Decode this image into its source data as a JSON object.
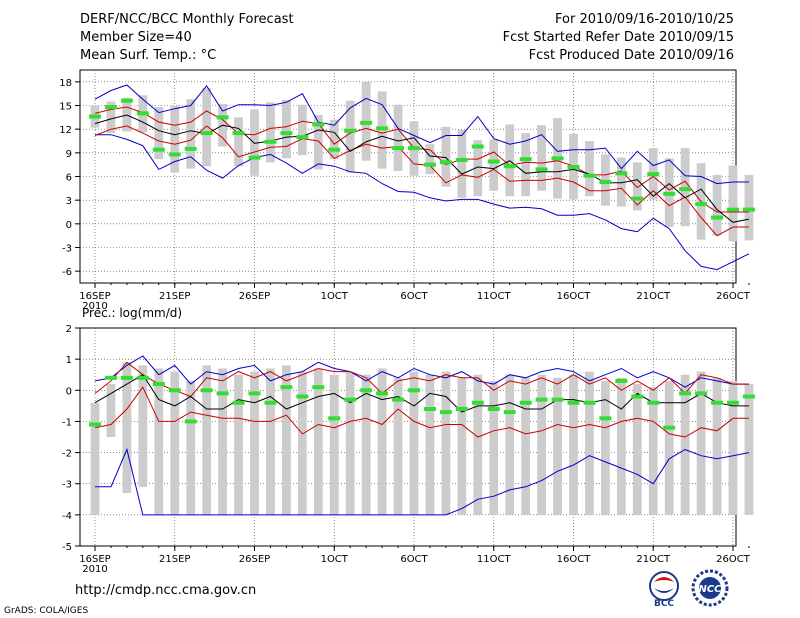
{
  "header": {
    "title": "DERF/NCC/BCC Monthly Forecast",
    "member_size": "Member Size=40",
    "variable": "Mean Surf. Temp.: °C",
    "period": "For 2010/09/16-2010/10/25",
    "started": "Fcst Started Refer Date 2010/09/15",
    "produced": "Fcst Produced Date 2010/09/16"
  },
  "footer": {
    "url": "http://cmdp.ncc.cma.gov.cn",
    "grads": "GrADS: COLA/IGES",
    "logo1": "BCC",
    "logo2": "NCC"
  },
  "colors": {
    "box": "#cccccc",
    "mean": "#000000",
    "spread": "#cc0000",
    "range": "#0000cc",
    "marker": "#33dd33"
  },
  "chart_data": [
    {
      "type": "box-whisker",
      "title": "Mean Surf. Temp.: °C",
      "x_tick_labels": [
        "16SEP",
        "21SEP",
        "26SEP",
        "1OCT",
        "6OCT",
        "11OCT",
        "16OCT",
        "21OCT",
        "26OCT"
      ],
      "x_sublabel": "2010",
      "ylim": [
        -7.5,
        19.5
      ],
      "y_ticks": [
        -6,
        -3,
        0,
        3,
        6,
        9,
        12,
        15,
        18
      ],
      "mean": [
        12.7,
        13.3,
        13.8,
        12.9,
        11.8,
        11.3,
        11.8,
        11.4,
        12.5,
        12.1,
        10.2,
        10.5,
        11.0,
        11.1,
        11.9,
        11.6,
        9.2,
        10.4,
        11.1,
        10.5,
        10.9,
        8.6,
        8.4,
        6.3,
        7.2,
        7.0,
        8.0,
        6.4,
        6.6,
        6.6,
        6.9,
        6.3,
        5.2,
        5.2,
        5.6,
        3.5,
        5.1,
        3.3,
        4.4,
        1.8,
        0.2,
        0.6
      ],
      "upper_sd": [
        14.0,
        14.5,
        14.8,
        14.1,
        12.9,
        12.5,
        12.9,
        14.3,
        13.2,
        11.4,
        11.3,
        12.1,
        12.3,
        13.0,
        12.7,
        10.1,
        11.5,
        12.1,
        11.5,
        12.0,
        9.6,
        9.4,
        7.5,
        8.2,
        8.2,
        9.1,
        7.4,
        7.8,
        7.7,
        8.0,
        7.3,
        6.2,
        6.2,
        6.7,
        4.6,
        6.0,
        4.3,
        5.4,
        2.8,
        1.5,
        1.5,
        1.5
      ],
      "lower_sd": [
        11.2,
        12.0,
        12.4,
        11.5,
        10.5,
        10.1,
        10.6,
        12.4,
        10.9,
        8.5,
        9.1,
        9.7,
        9.8,
        10.8,
        10.5,
        8.3,
        9.3,
        10.1,
        9.6,
        9.8,
        7.6,
        7.4,
        5.2,
        6.2,
        5.9,
        6.9,
        5.4,
        5.5,
        5.5,
        5.8,
        5.3,
        4.2,
        4.2,
        4.5,
        2.4,
        4.2,
        2.3,
        3.4,
        0.8,
        -1.5,
        -0.4,
        -0.4
      ],
      "max": [
        15.8,
        16.9,
        17.6,
        15.8,
        14.1,
        14.6,
        15.0,
        17.5,
        14.3,
        15.1,
        15.1,
        15.0,
        15.4,
        16.5,
        12.9,
        12.5,
        14.7,
        15.9,
        15.1,
        12.1,
        11.2,
        10.3,
        11.2,
        11.2,
        13.6,
        10.8,
        10.1,
        10.5,
        11.3,
        9.2,
        9.4,
        9.4,
        9.6,
        7.0,
        9.2,
        7.4,
        8.1,
        6.1,
        6.0,
        5.1,
        5.3,
        5.3
      ],
      "min": [
        11.3,
        11.3,
        10.7,
        9.9,
        6.9,
        7.9,
        8.5,
        6.8,
        5.8,
        7.4,
        8.4,
        8.8,
        7.7,
        6.4,
        7.6,
        7.3,
        6.6,
        6.4,
        5.1,
        4.1,
        4.0,
        3.3,
        2.9,
        3.1,
        3.1,
        2.5,
        2.0,
        2.1,
        1.9,
        1.1,
        1.1,
        1.3,
        0.5,
        -0.6,
        -1.0,
        0.7,
        -0.6,
        -3.4,
        -5.4,
        -5.8,
        -4.8,
        -3.8
      ],
      "box_top": [
        15,
        15.5,
        16,
        16.3,
        14.8,
        15,
        15.8,
        17.2,
        15.2,
        13.5,
        14.5,
        15.4,
        15.7,
        15.1,
        13.8,
        13.2,
        15.6,
        18,
        16.8,
        15.1,
        13,
        10.1,
        12.3,
        11.9,
        10.6,
        10.7,
        12.6,
        11.5,
        12.5,
        13.4,
        11.4,
        10.5,
        8.8,
        8.4,
        7.8,
        9.6,
        8.3,
        9.6,
        7.7,
        6.2,
        7.4,
        6.2
      ],
      "box_bottom": [
        12.2,
        11.5,
        11.7,
        11.6,
        8.2,
        6.5,
        7,
        7.3,
        9.8,
        7.3,
        6.1,
        7.8,
        8.3,
        8.7,
        6.9,
        8.2,
        6.5,
        8,
        7,
        6.7,
        6.1,
        6.3,
        4.7,
        3.3,
        3.5,
        4.2,
        3.5,
        3.5,
        4.2,
        3.2,
        3.1,
        3.5,
        2.3,
        2.2,
        1.7,
        3.1,
        -0.4,
        -0.3,
        -2,
        -1.5,
        -2.2,
        -2.1
      ],
      "markers": [
        13.6,
        14.8,
        15.6,
        14.0,
        9.4,
        8.8,
        9.5,
        11.5,
        13.5,
        11.5,
        8.4,
        10.4,
        11.5,
        11.0,
        12.6,
        9.4,
        11.8,
        12.8,
        12.1,
        9.6,
        9.6,
        7.5,
        7.8,
        8.1,
        9.8,
        7.9,
        7.3,
        8.2,
        6.9,
        8.3,
        7.2,
        6.1,
        5.3,
        6.4,
        3.2,
        6.3,
        3.8,
        4.4,
        2.5,
        0.8,
        1.8,
        1.8
      ]
    },
    {
      "type": "box-whisker",
      "title": "Prec.: log(mm/d)",
      "x_tick_labels": [
        "16SEP",
        "21SEP",
        "26SEP",
        "1OCT",
        "6OCT",
        "11OCT",
        "16OCT",
        "21OCT",
        "26OCT"
      ],
      "x_sublabel": "2010",
      "ylim": [
        -5,
        2
      ],
      "y_ticks": [
        -5,
        -4,
        -3,
        -2,
        -1,
        0,
        1,
        2
      ],
      "mean": [
        -0.4,
        -0.1,
        0.2,
        0.5,
        -0.3,
        -0.5,
        -0.2,
        -0.6,
        -0.6,
        -0.3,
        -0.4,
        -0.2,
        -0.6,
        -0.4,
        -0.2,
        -0.1,
        -0.4,
        -0.1,
        -0.3,
        -0.2,
        -0.5,
        -0.1,
        -0.2,
        -0.7,
        -0.5,
        -0.5,
        -0.4,
        -0.6,
        -0.6,
        -0.3,
        -0.3,
        -0.4,
        -0.3,
        -0.6,
        -0.1,
        -0.4,
        -0.4,
        -0.4,
        -0.1,
        -0.4,
        -0.5,
        -0.5
      ],
      "upper_sd": [
        -0.1,
        0.3,
        0.9,
        0.5,
        0.2,
        0.0,
        -0.2,
        0.4,
        0.3,
        0.6,
        0.4,
        0.6,
        0.3,
        0.5,
        0.7,
        0.6,
        0.6,
        0.4,
        -0.1,
        0.3,
        0.4,
        0.3,
        0.5,
        0.4,
        0.4,
        0.0,
        0.3,
        0.2,
        0.4,
        0.2,
        0.5,
        0.2,
        0.4,
        0.0,
        0.3,
        0.0,
        0.4,
        -0.1,
        0.5,
        0.4,
        0.2,
        0.2
      ],
      "lower_sd": [
        -1.2,
        -1.1,
        -0.6,
        0.1,
        -1.0,
        -1.0,
        -0.7,
        -0.8,
        -0.9,
        -0.9,
        -1.0,
        -1.0,
        -0.8,
        -1.4,
        -1.1,
        -1.2,
        -1.0,
        -0.9,
        -1.1,
        -0.6,
        -1.0,
        -1.2,
        -1.1,
        -1.1,
        -1.5,
        -1.3,
        -1.2,
        -1.4,
        -1.3,
        -1.1,
        -1.2,
        -1.1,
        -1.2,
        -1.0,
        -0.9,
        -1.0,
        -1.4,
        -1.5,
        -1.2,
        -1.3,
        -0.9,
        -0.9
      ],
      "max": [
        0.3,
        0.4,
        0.8,
        1.1,
        0.5,
        0.8,
        0.2,
        0.6,
        0.5,
        0.7,
        0.8,
        0.3,
        0.5,
        0.6,
        0.9,
        0.7,
        0.6,
        0.3,
        0.6,
        0.4,
        0.7,
        0.5,
        0.4,
        0.6,
        0.3,
        0.2,
        0.5,
        0.4,
        0.6,
        0.7,
        0.6,
        0.3,
        0.5,
        0.7,
        0.4,
        0.6,
        0.4,
        0.1,
        0.4,
        0.3,
        0.2,
        0.2
      ],
      "min": [
        -3.1,
        -3.1,
        -1.9,
        -4.0,
        -4.0,
        -4.0,
        -4.0,
        -4.0,
        -4.0,
        -4.0,
        -4.0,
        -4.0,
        -4.0,
        -4.0,
        -4.0,
        -4.0,
        -4.0,
        -4.0,
        -4.0,
        -4.0,
        -4.0,
        -4.0,
        -4.0,
        -3.8,
        -3.5,
        -3.4,
        -3.2,
        -3.1,
        -2.9,
        -2.6,
        -2.4,
        -2.1,
        -2.3,
        -2.5,
        -2.7,
        -3.0,
        -2.2,
        -1.9,
        -2.1,
        -2.2,
        -2.1,
        -2.0
      ],
      "box_top": [
        -0.4,
        0.2,
        0.9,
        0.8,
        0.7,
        0.6,
        0.3,
        0.8,
        0.7,
        0.5,
        0.6,
        0.7,
        0.8,
        0.6,
        0.7,
        0.5,
        0.6,
        0.5,
        0.7,
        0.4,
        0.6,
        0.5,
        0.6,
        0.4,
        0.5,
        0.3,
        0.5,
        0.4,
        0.5,
        0.4,
        0.5,
        0.6,
        0.3,
        0.4,
        0.2,
        0.1,
        0.3,
        0.5,
        0.6,
        0.4,
        0.3,
        0.2
      ],
      "box_bottom": [
        -4.0,
        -1.5,
        -3.3,
        -3.1,
        -4.0,
        -4.0,
        -4.0,
        -4.0,
        -4.0,
        -4.0,
        -4.0,
        -4.0,
        -4.0,
        -4.0,
        -4.0,
        -4.0,
        -4.0,
        -4.0,
        -4.0,
        -4.0,
        -4.0,
        -4.0,
        -4.0,
        -4.0,
        -4.0,
        -4.0,
        -4.0,
        -4.0,
        -4.0,
        -4.0,
        -4.0,
        -4.0,
        -4.0,
        -4.0,
        -4.0,
        -4.0,
        -4.0,
        -4.0,
        -4.0,
        -4.0,
        -4.0,
        -4.0
      ],
      "markers": [
        -1.1,
        0.4,
        0.4,
        0.4,
        0.2,
        0.0,
        -1.0,
        0.0,
        -0.1,
        -0.4,
        -0.1,
        -0.4,
        0.1,
        -0.2,
        0.1,
        -0.9,
        -0.3,
        0.0,
        -0.1,
        -0.3,
        0.0,
        -0.6,
        -0.7,
        -0.6,
        -0.4,
        -0.6,
        -0.7,
        -0.4,
        -0.3,
        -0.3,
        -0.4,
        -0.4,
        -0.9,
        0.3,
        -0.2,
        -0.4,
        -1.2,
        -0.1,
        -0.1,
        -0.4,
        -0.4,
        -0.2
      ]
    }
  ]
}
